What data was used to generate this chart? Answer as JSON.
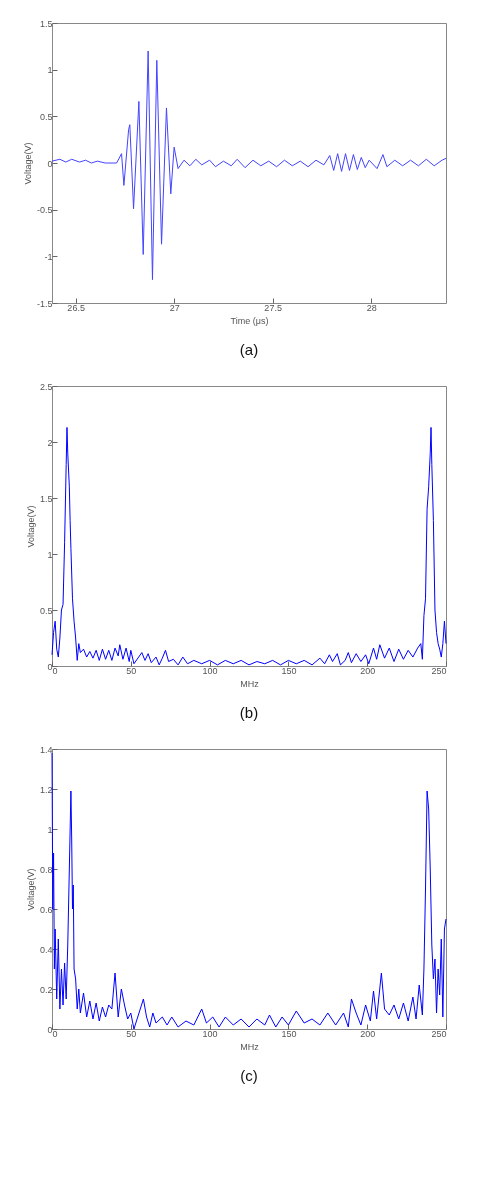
{
  "chart_data": [
    {
      "type": "line",
      "title": "(a)",
      "xlabel": "Time (μs)",
      "ylabel": "Voltage(V)",
      "xlim": [
        26.38,
        28.38
      ],
      "ylim": [
        -1.5,
        1.5
      ],
      "xticks": [
        26.5,
        27,
        27.5,
        28
      ],
      "yticks": [
        -1.5,
        -1,
        -0.5,
        0,
        0.5,
        1,
        1.5
      ],
      "x": [
        26.38,
        26.42,
        26.45,
        26.48,
        26.52,
        26.55,
        26.58,
        26.61,
        26.65,
        26.708,
        26.733,
        26.745,
        26.769,
        26.775,
        26.794,
        26.821,
        26.843,
        26.868,
        26.89,
        26.912,
        26.936,
        26.961,
        26.983,
        27.0,
        27.02,
        27.05,
        27.08,
        27.11,
        27.14,
        27.18,
        27.21,
        27.25,
        27.29,
        27.32,
        27.36,
        27.4,
        27.44,
        27.48,
        27.52,
        27.56,
        27.6,
        27.64,
        27.68,
        27.72,
        27.76,
        27.79,
        27.81,
        27.83,
        27.85,
        27.87,
        27.89,
        27.91,
        27.93,
        27.95,
        27.97,
        27.99,
        28.03,
        28.06,
        28.08,
        28.12,
        28.16,
        28.2,
        28.24,
        28.28,
        28.32,
        28.36,
        28.38
      ],
      "series": [
        {
          "color": "#4444ff",
          "values": [
            0.02,
            0.04,
            0.01,
            0.04,
            0.01,
            0.03,
            0.0,
            0.02,
            0.0,
            0.0,
            0.1,
            -0.24,
            0.36,
            0.41,
            -0.49,
            0.66,
            -0.98,
            1.2,
            -1.25,
            1.1,
            -0.87,
            0.59,
            -0.33,
            0.17,
            -0.06,
            0.03,
            -0.03,
            0.04,
            -0.02,
            0.03,
            -0.04,
            0.02,
            -0.03,
            0.04,
            -0.05,
            0.03,
            -0.03,
            0.02,
            -0.04,
            0.03,
            -0.03,
            0.02,
            -0.04,
            0.03,
            -0.02,
            0.08,
            -0.08,
            0.1,
            -0.09,
            0.1,
            -0.08,
            0.09,
            -0.07,
            0.06,
            -0.05,
            0.03,
            -0.06,
            0.09,
            -0.04,
            0.03,
            -0.03,
            0.03,
            -0.03,
            0.04,
            -0.03,
            0.03,
            0.05
          ]
        }
      ]
    },
    {
      "type": "line",
      "title": "(b)",
      "xlabel": "MHz",
      "ylabel": "Voltage(V)",
      "xlim": [
        0,
        250
      ],
      "ylim": [
        0,
        2.5
      ],
      "xticks": [
        0,
        50,
        100,
        150,
        200,
        250
      ],
      "yticks": [
        0,
        0.5,
        1,
        1.5,
        2,
        2.5
      ],
      "x": [
        0,
        1,
        2,
        3,
        4,
        5,
        6,
        7,
        8,
        9,
        9.5,
        10,
        11,
        11.5,
        12,
        13,
        14,
        15,
        16,
        17,
        18,
        20,
        22,
        24,
        26,
        28,
        30,
        32,
        34,
        36,
        38,
        40,
        42,
        43,
        45,
        47,
        49,
        50,
        52,
        55,
        57,
        59,
        61,
        63,
        66,
        68,
        70,
        72,
        74,
        77,
        80,
        83,
        86,
        90,
        95,
        100,
        105,
        110,
        115,
        120,
        125,
        130,
        135,
        140,
        145,
        150,
        155,
        160,
        165,
        170,
        173,
        176,
        178,
        181,
        183,
        186,
        188,
        190,
        193,
        196,
        199,
        201,
        204,
        206,
        208,
        211,
        214,
        217,
        220,
        223,
        226,
        229,
        232,
        234,
        235,
        236,
        237,
        238,
        239,
        240,
        240.5,
        241,
        242,
        243,
        244,
        245,
        246,
        247,
        248,
        249,
        250
      ],
      "series": [
        {
          "color": "#0000ff",
          "values": [
            0.1,
            0.3,
            0.4,
            0.15,
            0.08,
            0.25,
            0.5,
            0.55,
            1.1,
            1.8,
            2.13,
            1.9,
            1.6,
            1.3,
            1.05,
            0.6,
            0.4,
            0.25,
            0.05,
            0.2,
            0.12,
            0.15,
            0.08,
            0.13,
            0.07,
            0.14,
            0.05,
            0.15,
            0.06,
            0.14,
            0.05,
            0.16,
            0.09,
            0.19,
            0.06,
            0.16,
            0.04,
            0.14,
            0.02,
            0.08,
            0.12,
            0.05,
            0.11,
            0.03,
            0.08,
            0.01,
            0.07,
            0.14,
            0.04,
            0.06,
            0.01,
            0.08,
            0.02,
            0.05,
            0.02,
            0.05,
            0.01,
            0.05,
            0.02,
            0.05,
            0.01,
            0.04,
            0.02,
            0.05,
            0.01,
            0.05,
            0.02,
            0.05,
            0.01,
            0.07,
            0.02,
            0.1,
            0.04,
            0.11,
            0.01,
            0.05,
            0.12,
            0.03,
            0.11,
            0.04,
            0.1,
            0.02,
            0.16,
            0.06,
            0.19,
            0.07,
            0.16,
            0.04,
            0.15,
            0.06,
            0.14,
            0.08,
            0.16,
            0.2,
            0.06,
            0.45,
            0.6,
            1.4,
            1.6,
            1.9,
            2.13,
            1.8,
            1.3,
            0.5,
            0.3,
            0.2,
            0.15,
            0.08,
            0.2,
            0.4,
            0.2
          ]
        }
      ]
    },
    {
      "type": "line",
      "title": "(c)",
      "xlabel": "MHz",
      "ylabel": "Voltage(V)",
      "xlim": [
        0,
        250
      ],
      "ylim": [
        0,
        1.4
      ],
      "xticks": [
        0,
        50,
        100,
        150,
        200,
        250
      ],
      "yticks": [
        0,
        0.2,
        0.4,
        0.6,
        0.8,
        1,
        1.2,
        1.4
      ],
      "x": [
        0,
        0.5,
        1,
        1.5,
        2,
        3,
        4,
        5,
        6,
        7,
        8,
        9,
        10,
        11,
        12,
        12.5,
        13,
        13.5,
        14,
        15,
        16,
        17,
        18,
        20,
        22,
        24,
        26,
        28,
        30,
        32,
        34,
        36,
        38,
        40,
        42,
        44,
        46,
        48,
        50,
        52,
        54,
        56,
        58,
        60,
        62,
        64,
        66,
        70,
        73,
        76,
        80,
        85,
        90,
        95,
        98,
        102,
        106,
        110,
        115,
        120,
        125,
        130,
        135,
        138,
        142,
        146,
        150,
        155,
        160,
        165,
        170,
        175,
        180,
        185,
        188,
        190,
        193,
        196,
        199,
        202,
        204,
        206,
        209,
        211,
        214,
        217,
        220,
        223,
        226,
        229,
        231,
        233,
        235,
        236,
        237,
        238,
        239,
        240,
        241,
        242,
        243,
        244,
        245,
        246,
        247,
        248,
        249,
        250
      ],
      "series": [
        {
          "color": "#0000ff",
          "values": [
            1.38,
            0.6,
            0.88,
            0.3,
            0.5,
            0.15,
            0.45,
            0.1,
            0.3,
            0.12,
            0.33,
            0.15,
            0.42,
            0.8,
            1.19,
            0.95,
            0.6,
            0.72,
            0.3,
            0.25,
            0.1,
            0.2,
            0.08,
            0.18,
            0.06,
            0.14,
            0.05,
            0.13,
            0.04,
            0.11,
            0.06,
            0.12,
            0.1,
            0.28,
            0.06,
            0.2,
            0.12,
            0.05,
            0.08,
            0.0,
            0.05,
            0.1,
            0.15,
            0.06,
            0.01,
            0.08,
            0.03,
            0.06,
            0.02,
            0.06,
            0.01,
            0.04,
            0.02,
            0.1,
            0.03,
            0.06,
            0.01,
            0.06,
            0.02,
            0.05,
            0.01,
            0.05,
            0.02,
            0.07,
            0.01,
            0.06,
            0.02,
            0.09,
            0.03,
            0.05,
            0.02,
            0.08,
            0.02,
            0.08,
            0.01,
            0.15,
            0.08,
            0.02,
            0.12,
            0.04,
            0.19,
            0.05,
            0.28,
            0.1,
            0.07,
            0.12,
            0.05,
            0.13,
            0.04,
            0.16,
            0.05,
            0.22,
            0.07,
            0.3,
            0.7,
            1.19,
            1.1,
            0.8,
            0.42,
            0.25,
            0.35,
            0.08,
            0.3,
            0.17,
            0.45,
            0.06,
            0.5,
            0.55
          ]
        }
      ]
    }
  ]
}
